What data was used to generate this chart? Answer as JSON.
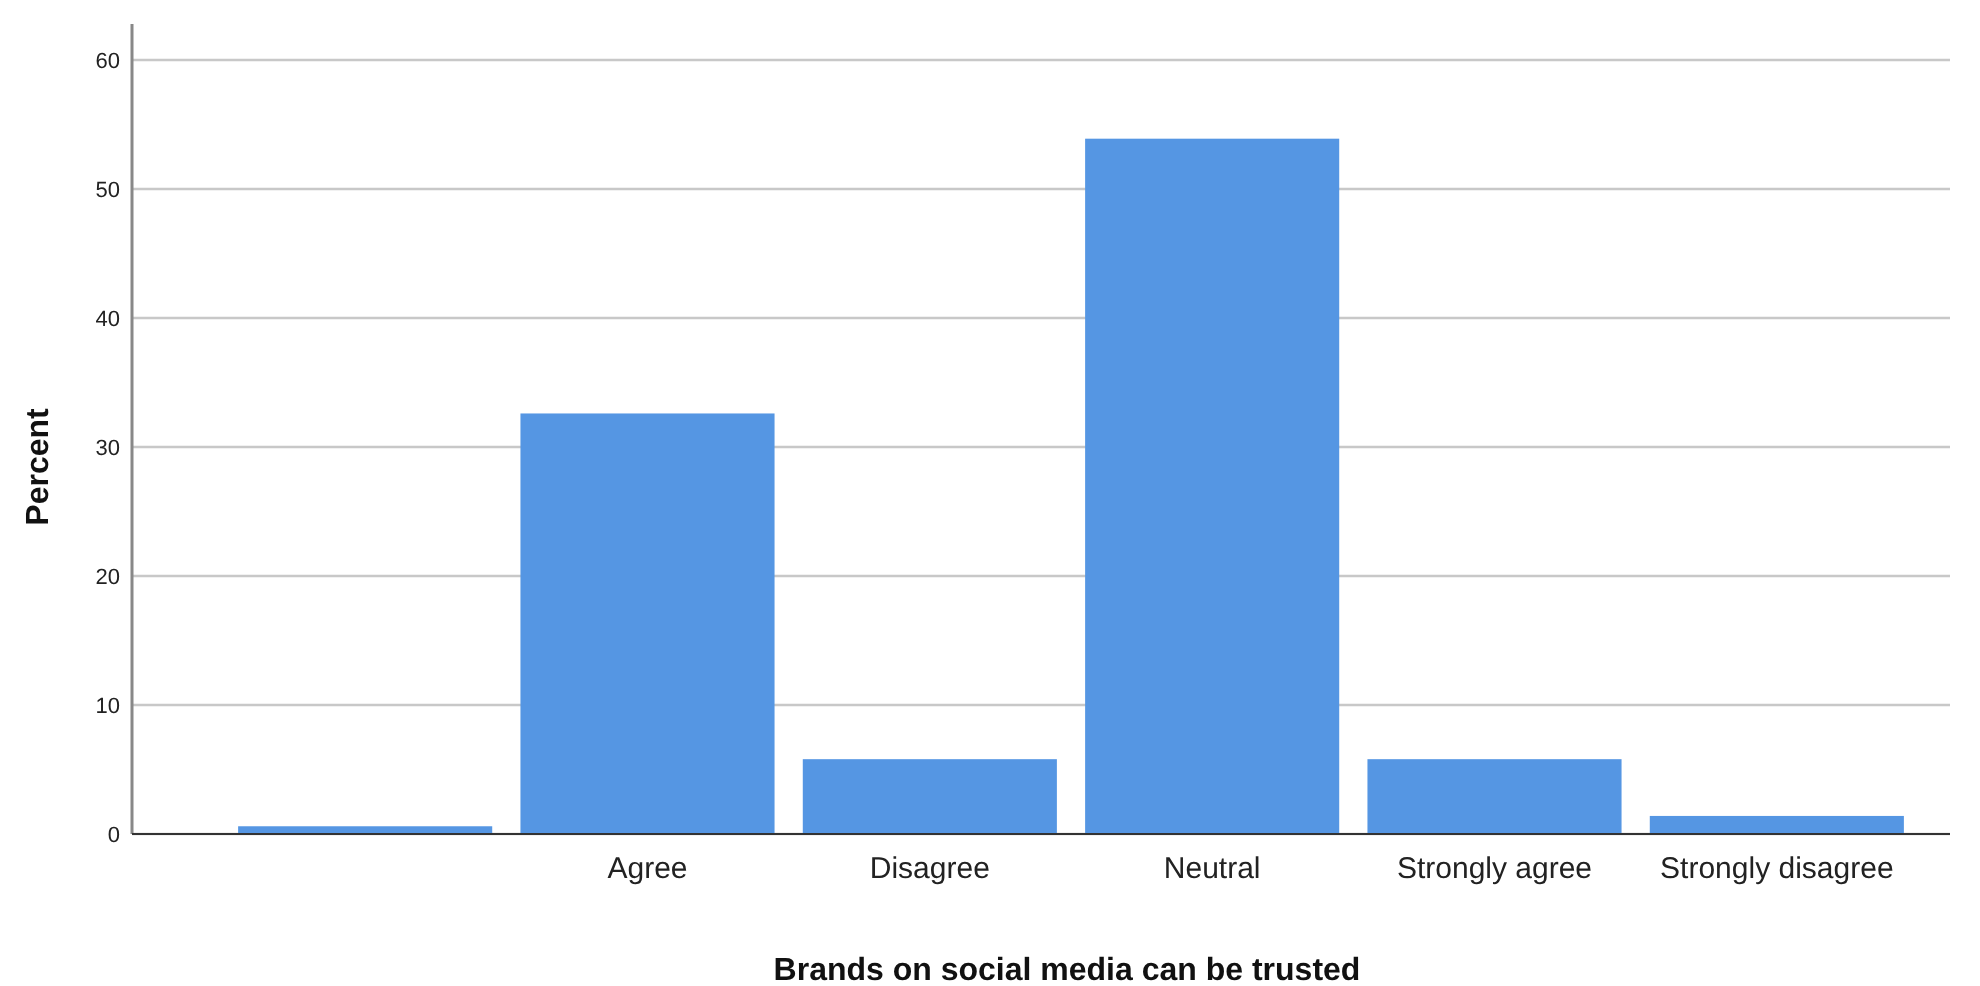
{
  "chart_data": {
    "type": "bar",
    "xlabel": "Brands on social media can be trusted",
    "ylabel": "Percent",
    "categories": [
      null,
      "Agree",
      "Disagree",
      "Neutral",
      "Strongly agree",
      "Strongly disagree"
    ],
    "values": [
      0.6,
      32.6,
      5.8,
      53.9,
      5.8,
      1.4
    ],
    "color": "#5596e3",
    "ylim": [
      0,
      60
    ],
    "yticks": [
      0,
      10,
      20,
      30,
      40,
      50,
      60
    ],
    "grid": "y"
  }
}
